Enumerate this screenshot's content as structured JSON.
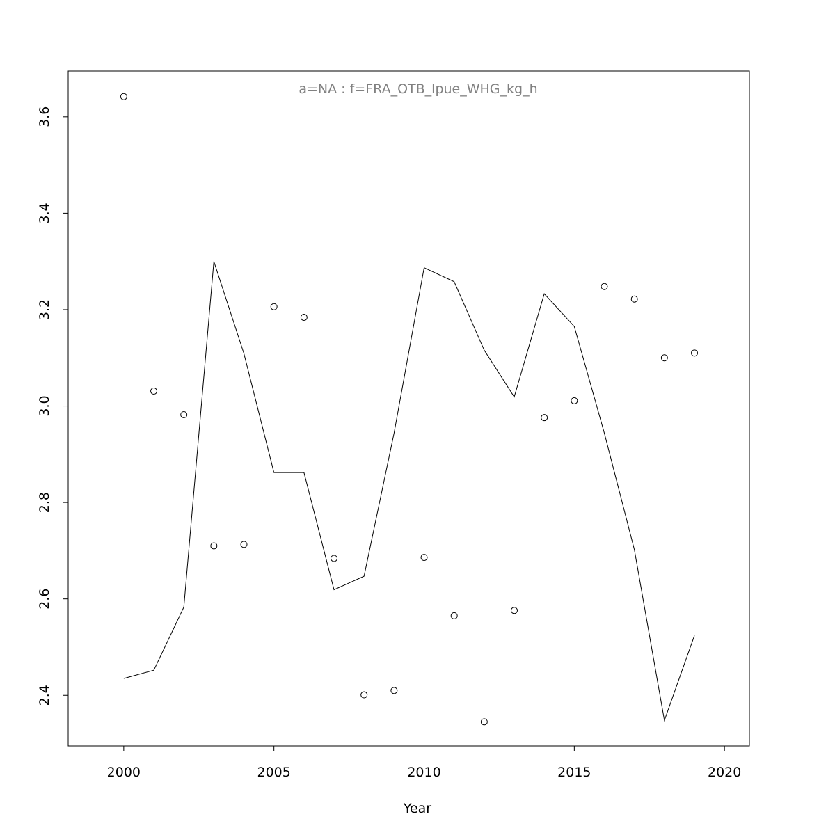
{
  "chart_data": {
    "type": "line",
    "title": "a=NA  :  f=FRA_OTB_lpue_WHG_kg_h",
    "x_label": "Year",
    "x": [
      2000,
      2001,
      2002,
      2003,
      2004,
      2005,
      2006,
      2007,
      2008,
      2009,
      2010,
      2011,
      2012,
      2013,
      2014,
      2015,
      2016,
      2017,
      2018,
      2019
    ],
    "series": [
      {
        "type": "scatter",
        "color": "#000000",
        "values": [
          3.642,
          3.031,
          2.982,
          2.71,
          2.713,
          3.206,
          3.184,
          2.684,
          2.401,
          2.41,
          2.686,
          2.565,
          2.345,
          2.576,
          2.976,
          3.011,
          3.248,
          3.222,
          3.1,
          3.11
        ]
      },
      {
        "type": "line",
        "color": "#000000",
        "values": [
          2.435,
          2.452,
          2.583,
          3.3,
          3.109,
          2.862,
          2.862,
          2.619,
          2.647,
          2.944,
          3.287,
          3.258,
          3.116,
          3.019,
          3.233,
          3.165,
          2.944,
          2.702,
          2.348,
          2.524
        ]
      }
    ],
    "xlim": [
      1998.15,
      2020.83
    ],
    "xticks": [
      2000,
      2005,
      2010,
      2015,
      2020
    ],
    "ylim": [
      2.295,
      3.695
    ],
    "yticks": [
      {
        "value": 2.4,
        "label": "2.4"
      },
      {
        "value": 2.6,
        "label": "2.6"
      },
      {
        "value": 2.8,
        "label": "2.8"
      },
      {
        "value": 3.0,
        "label": "3.0"
      },
      {
        "value": 3.2,
        "label": "3.2"
      },
      {
        "value": 3.4,
        "label": "3.4"
      },
      {
        "value": 3.6,
        "label": "3.6"
      }
    ],
    "grid": false
  }
}
